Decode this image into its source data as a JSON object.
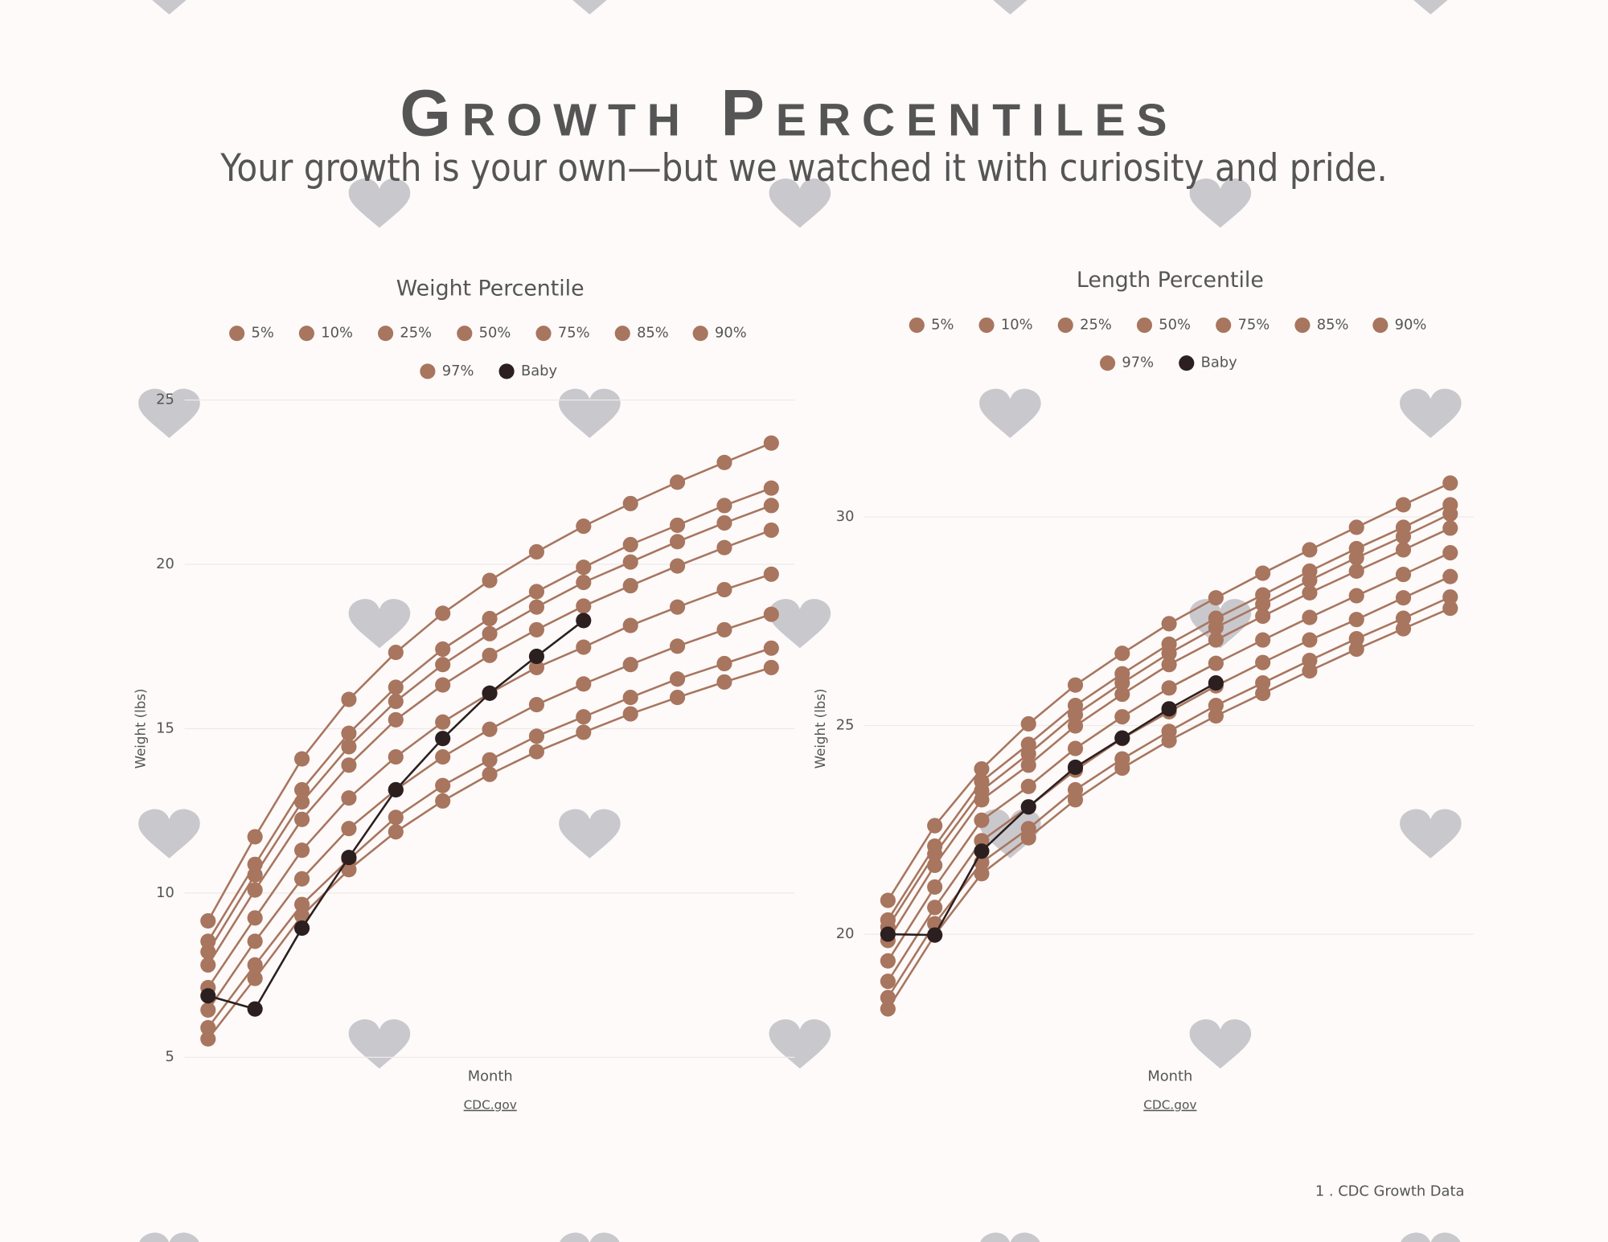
{
  "header": {
    "title": "Growth Percentiles",
    "subtitle": "Your growth is your own—but we watched it with curiosity and pride."
  },
  "footnote": "1 . CDC Growth Data",
  "chart_data": [
    {
      "type": "line",
      "title": "Weight Percentile",
      "x_label": "Month",
      "y_label": "Weight (lbs)",
      "source": "CDC.gov",
      "categories": [
        null,
        null,
        null,
        null,
        null,
        null,
        null,
        null,
        null,
        null,
        null,
        null,
        null
      ],
      "ylim": [
        5,
        25
      ],
      "yticks": [
        5,
        10,
        15,
        20,
        25
      ],
      "grid": true,
      "legend": "top",
      "series": [
        {
          "name": "5%",
          "color": "#a8755f",
          "values": [
            5.56,
            7.4,
            9.31,
            10.71,
            11.86,
            12.8,
            13.61,
            14.3,
            14.89,
            15.45,
            15.95,
            16.42,
            16.86
          ]
        },
        {
          "name": "10%",
          "color": "#a8755f",
          "values": [
            5.9,
            7.81,
            9.65,
            11.02,
            12.3,
            13.27,
            14.05,
            14.77,
            15.36,
            15.95,
            16.51,
            16.98,
            17.45
          ]
        },
        {
          "name": "25%",
          "color": "#a8755f",
          "values": [
            6.44,
            8.53,
            10.43,
            11.96,
            13.14,
            14.14,
            14.98,
            15.73,
            16.36,
            16.95,
            17.51,
            18.01,
            18.48
          ]
        },
        {
          "name": "50%",
          "color": "#a8755f",
          "values": [
            7.12,
            9.24,
            11.3,
            12.89,
            14.14,
            15.2,
            16.08,
            16.86,
            17.48,
            18.14,
            18.7,
            19.23,
            19.7
          ]
        },
        {
          "name": "75%",
          "color": "#a8755f",
          "values": [
            7.81,
            10.09,
            12.24,
            13.89,
            15.27,
            16.33,
            17.23,
            18.01,
            18.73,
            19.35,
            19.95,
            20.51,
            21.04
          ]
        },
        {
          "name": "85%",
          "color": "#a8755f",
          "values": [
            8.21,
            10.55,
            12.77,
            14.45,
            15.83,
            16.95,
            17.89,
            18.7,
            19.45,
            20.07,
            20.69,
            21.26,
            21.79
          ]
        },
        {
          "name": "90%",
          "color": "#a8755f",
          "values": [
            8.53,
            10.87,
            13.14,
            14.86,
            16.26,
            17.42,
            18.35,
            19.17,
            19.91,
            20.6,
            21.19,
            21.79,
            22.32
          ]
        },
        {
          "name": "97%",
          "color": "#a8755f",
          "values": [
            9.15,
            11.71,
            14.08,
            15.89,
            17.32,
            18.51,
            19.51,
            20.38,
            21.16,
            21.85,
            22.5,
            23.1,
            23.69
          ]
        },
        {
          "name": "Baby",
          "color": "#2b1f1f",
          "values": [
            6.87,
            6.47,
            8.93,
            11.08,
            13.14,
            14.7,
            16.08,
            17.2,
            18.29,
            null,
            null,
            null,
            null
          ]
        }
      ]
    },
    {
      "type": "line",
      "title": "Length Percentile",
      "x_label": "Month",
      "y_label": "Weight (lbs)",
      "source": "CDC.gov",
      "categories": [
        null,
        null,
        null,
        null,
        null,
        null,
        null,
        null,
        null,
        null,
        null,
        null,
        null
      ],
      "ylim": [
        17.05,
        32.8
      ],
      "yticks": [
        20,
        25,
        30
      ],
      "grid": true,
      "legend": "top",
      "series": [
        {
          "name": "5%",
          "color": "#a8755f",
          "values": [
            18.21,
            19.98,
            21.45,
            22.31,
            23.22,
            23.98,
            24.64,
            25.23,
            25.77,
            26.31,
            26.83,
            27.32,
            27.81
          ]
        },
        {
          "name": "10%",
          "color": "#a8755f",
          "values": [
            18.48,
            20.25,
            21.72,
            22.53,
            23.46,
            24.2,
            24.86,
            25.48,
            26.02,
            26.56,
            27.08,
            27.57,
            28.08
          ]
        },
        {
          "name": "25%",
          "color": "#a8755f",
          "values": [
            18.87,
            20.64,
            22.24,
            23.05,
            23.93,
            24.69,
            25.33,
            25.95,
            26.51,
            27.05,
            27.54,
            28.06,
            28.57
          ]
        },
        {
          "name": "50%",
          "color": "#a8755f",
          "values": [
            19.36,
            21.13,
            22.73,
            23.54,
            24.45,
            25.21,
            25.9,
            26.49,
            27.05,
            27.59,
            28.11,
            28.62,
            29.14
          ]
        },
        {
          "name": "75%",
          "color": "#a8755f",
          "values": [
            19.85,
            21.65,
            23.22,
            24.05,
            24.99,
            25.75,
            26.46,
            27.05,
            27.62,
            28.18,
            28.7,
            29.21,
            29.73
          ]
        },
        {
          "name": "85%",
          "color": "#a8755f",
          "values": [
            20.17,
            21.92,
            23.44,
            24.32,
            25.26,
            26.02,
            26.73,
            27.35,
            27.91,
            28.48,
            29.02,
            29.53,
            30.07
          ]
        },
        {
          "name": "90%",
          "color": "#a8755f",
          "values": [
            20.34,
            22.11,
            23.66,
            24.55,
            25.48,
            26.24,
            26.95,
            27.57,
            28.13,
            28.7,
            29.24,
            29.75,
            30.29
          ]
        },
        {
          "name": "97%",
          "color": "#a8755f",
          "values": [
            20.81,
            22.6,
            23.96,
            25.04,
            25.97,
            26.73,
            27.44,
            28.06,
            28.65,
            29.21,
            29.75,
            30.29,
            30.81
          ]
        },
        {
          "name": "Baby",
          "color": "#2b1f1f",
          "values": [
            20,
            19.98,
            21.99,
            23.05,
            24.0,
            24.7,
            25.4,
            26.02,
            null,
            null,
            null,
            null,
            null
          ]
        }
      ]
    }
  ]
}
